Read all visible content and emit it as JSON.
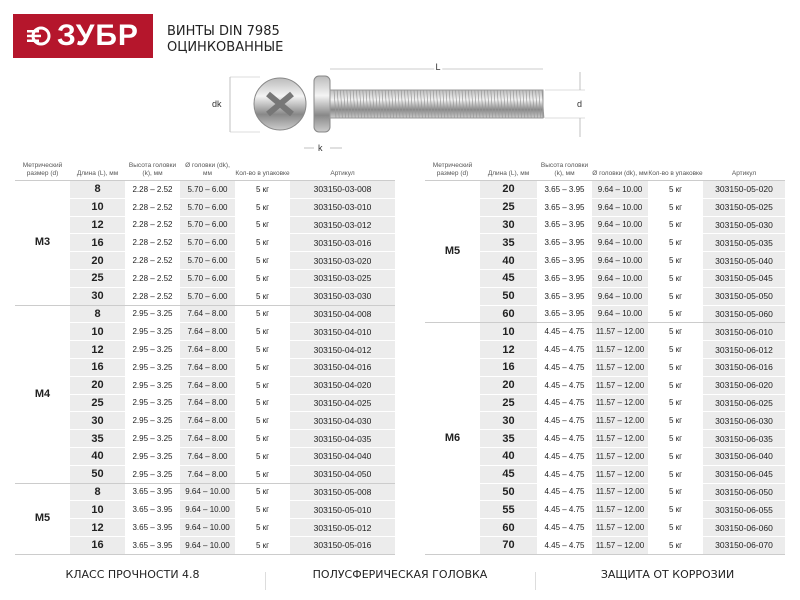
{
  "brand": {
    "logo": "ЗУБР",
    "color": "#b5162c"
  },
  "title": {
    "line1": "ВИНТЫ DIN 7985",
    "line2": "ОЦИНКОВАННЫЕ"
  },
  "diagram": {
    "dk": "dk",
    "k": "k",
    "L": "L",
    "d": "d"
  },
  "headers": [
    "Метрический размер (d)",
    "Длина (L), мм",
    "Высота головки (k), мм",
    "Ø головки (dk), мм",
    "Кол-во в упаковке",
    "Артикул"
  ],
  "left_table": [
    {
      "size": "M3",
      "k": "2.28 – 2.52",
      "dk": "5.70 – 6.00",
      "qty": "5 кг",
      "rows": [
        [
          "8",
          "303150-03-008"
        ],
        [
          "10",
          "303150-03-010"
        ],
        [
          "12",
          "303150-03-012"
        ],
        [
          "16",
          "303150-03-016"
        ],
        [
          "20",
          "303150-03-020"
        ],
        [
          "25",
          "303150-03-025"
        ],
        [
          "30",
          "303150-03-030"
        ]
      ]
    },
    {
      "size": "M4",
      "k": "2.95 – 3.25",
      "dk": "7.64 – 8.00",
      "qty": "5 кг",
      "rows": [
        [
          "8",
          "303150-04-008"
        ],
        [
          "10",
          "303150-04-010"
        ],
        [
          "12",
          "303150-04-012"
        ],
        [
          "16",
          "303150-04-016"
        ],
        [
          "20",
          "303150-04-020"
        ],
        [
          "25",
          "303150-04-025"
        ],
        [
          "30",
          "303150-04-030"
        ],
        [
          "35",
          "303150-04-035"
        ],
        [
          "40",
          "303150-04-040"
        ],
        [
          "50",
          "303150-04-050"
        ]
      ]
    },
    {
      "size": "M5",
      "k": "3.65 – 3.95",
      "dk": "9.64 – 10.00",
      "qty": "5 кг",
      "rows": [
        [
          "8",
          "303150-05-008"
        ],
        [
          "10",
          "303150-05-010"
        ],
        [
          "12",
          "303150-05-012"
        ],
        [
          "16",
          "303150-05-016"
        ]
      ]
    }
  ],
  "right_table": [
    {
      "size": "M5",
      "k": "3.65 – 3.95",
      "dk": "9.64 – 10.00",
      "qty": "5 кг",
      "rows": [
        [
          "20",
          "303150-05-020"
        ],
        [
          "25",
          "303150-05-025"
        ],
        [
          "30",
          "303150-05-030"
        ],
        [
          "35",
          "303150-05-035"
        ],
        [
          "40",
          "303150-05-040"
        ],
        [
          "45",
          "303150-05-045"
        ],
        [
          "50",
          "303150-05-050"
        ],
        [
          "60",
          "303150-05-060"
        ]
      ]
    },
    {
      "size": "M6",
      "k": "4.45 – 4.75",
      "dk": "11.57 – 12.00",
      "qty": "5 кг",
      "rows": [
        [
          "10",
          "303150-06-010"
        ],
        [
          "12",
          "303150-06-012"
        ],
        [
          "16",
          "303150-06-016"
        ],
        [
          "20",
          "303150-06-020"
        ],
        [
          "25",
          "303150-06-025"
        ],
        [
          "30",
          "303150-06-030"
        ],
        [
          "35",
          "303150-06-035"
        ],
        [
          "40",
          "303150-06-040"
        ],
        [
          "45",
          "303150-06-045"
        ],
        [
          "50",
          "303150-06-050"
        ],
        [
          "55",
          "303150-06-055"
        ],
        [
          "60",
          "303150-06-060"
        ],
        [
          "70",
          "303150-06-070"
        ]
      ]
    }
  ],
  "footer": [
    "КЛАСС ПРОЧНОСТИ 4.8",
    "ПОЛУСФЕРИЧЕСКАЯ ГОЛОВКА",
    "ЗАЩИТА ОТ КОРРОЗИИ"
  ]
}
